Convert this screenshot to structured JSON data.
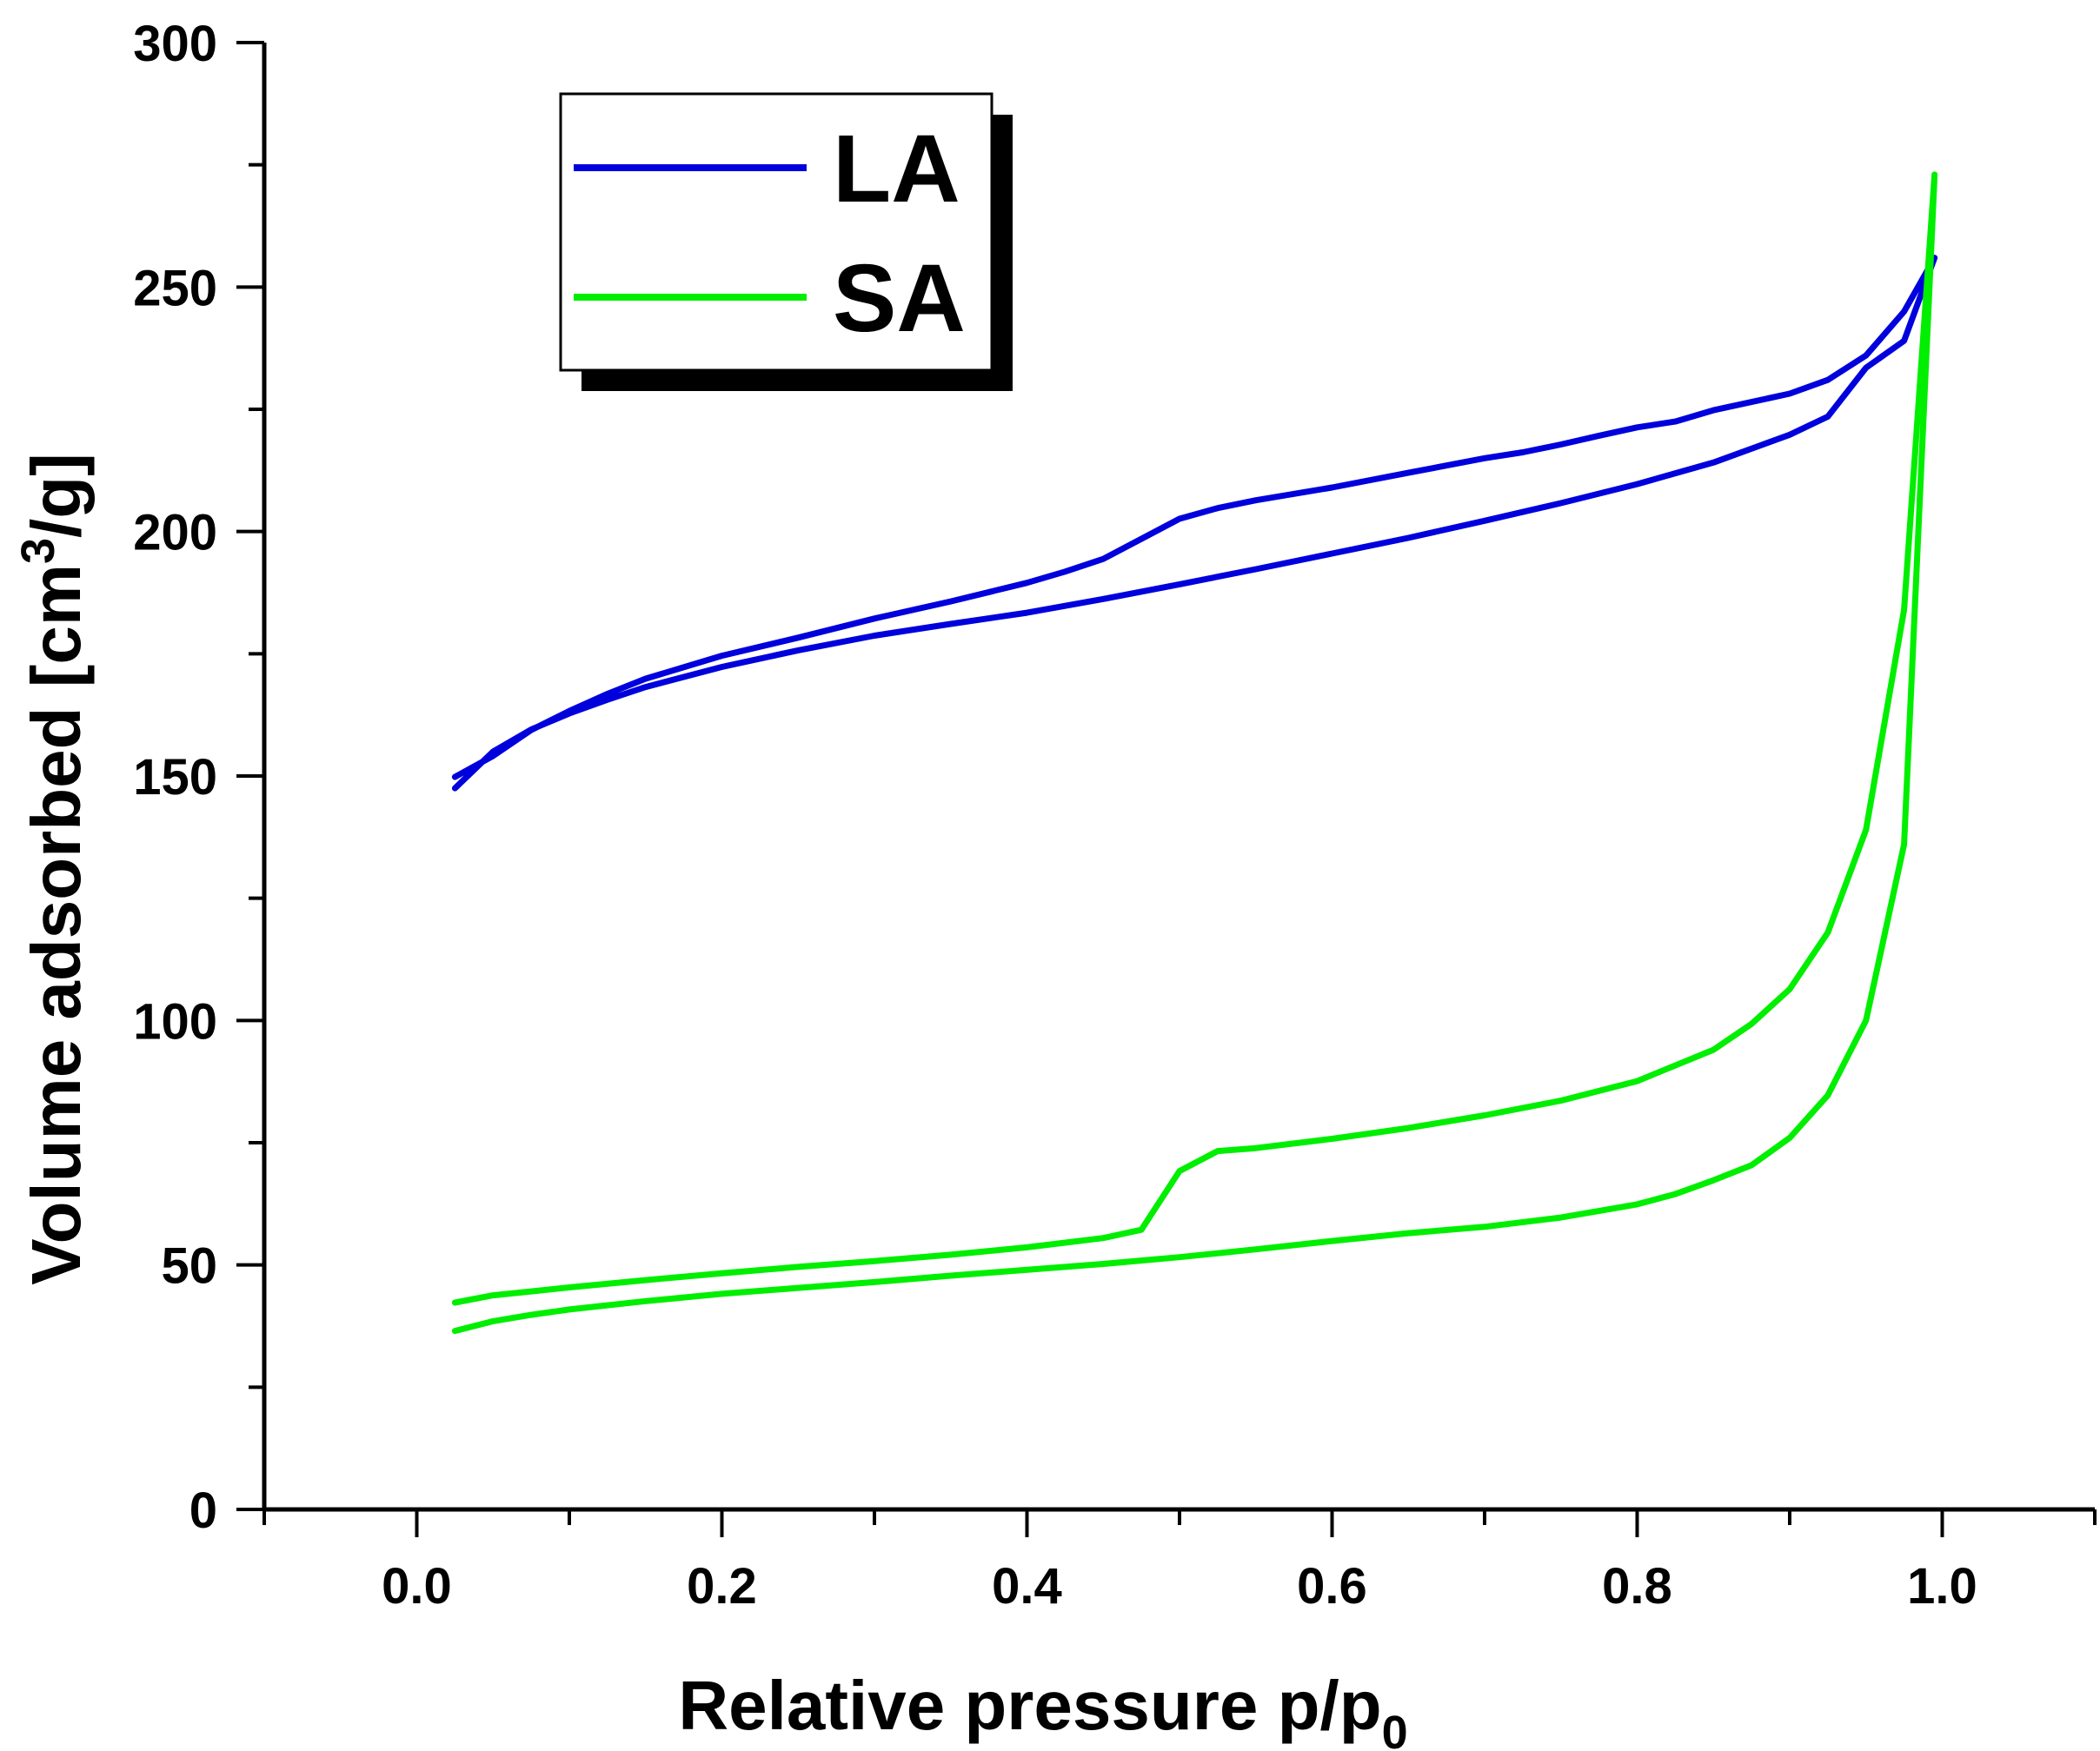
{
  "chart_data": {
    "type": "line",
    "xlabel": "Relative pressure p/p",
    "xlabel_sub": "0",
    "ylabel_pre": "Volume adsorbed [cm",
    "ylabel_sup": "3",
    "ylabel_post": "/g]",
    "xlim": [
      -0.1,
      1.1
    ],
    "ylim": [
      0,
      300
    ],
    "xticks": [
      0.0,
      0.2,
      0.4,
      0.6,
      0.8,
      1.0
    ],
    "xtick_labels": [
      "0.0",
      "0.2",
      "0.4",
      "0.6",
      "0.8",
      "1.0"
    ],
    "yticks": [
      0,
      50,
      100,
      150,
      200,
      250,
      300
    ],
    "ytick_labels": [
      "0",
      "50",
      "100",
      "150",
      "200",
      "250",
      "300"
    ],
    "grid": false,
    "legend_position": "top-left",
    "series": [
      {
        "name": "LA",
        "color": "#0000dd",
        "x": [
          0.025,
          0.05,
          0.075,
          0.1,
          0.125,
          0.15,
          0.2,
          0.25,
          0.3,
          0.35,
          0.4,
          0.45,
          0.5,
          0.55,
          0.6,
          0.65,
          0.7,
          0.75,
          0.8,
          0.85,
          0.9,
          0.925,
          0.95,
          0.975,
          0.995,
          0.975,
          0.95,
          0.925,
          0.9,
          0.85,
          0.825,
          0.8,
          0.775,
          0.75,
          0.725,
          0.7,
          0.675,
          0.65,
          0.6,
          0.55,
          0.525,
          0.5,
          0.475,
          0.45,
          0.425,
          0.4,
          0.35,
          0.3,
          0.25,
          0.2,
          0.15,
          0.125,
          0.1,
          0.075,
          0.05,
          0.025
        ],
        "y": [
          147.5,
          155,
          159.5,
          162.8,
          165.6,
          168.2,
          172.3,
          175.7,
          178.7,
          181.1,
          183.4,
          186.2,
          189.2,
          192.3,
          195.5,
          198.7,
          202.2,
          205.8,
          209.7,
          214.1,
          219.8,
          223.5,
          233.5,
          239,
          256,
          245,
          236,
          231,
          228.2,
          224.8,
          222.5,
          221.3,
          219.6,
          217.8,
          216.2,
          215,
          213.5,
          212,
          209,
          206.4,
          204.8,
          202.6,
          198.5,
          194.4,
          191.8,
          189.5,
          185.7,
          182.2,
          178.3,
          174.6,
          169.9,
          166.8,
          163.3,
          159.4,
          154.1,
          149.8
        ]
      },
      {
        "name": "SA",
        "color": "#00ee00",
        "x": [
          0.025,
          0.05,
          0.075,
          0.1,
          0.15,
          0.2,
          0.25,
          0.3,
          0.35,
          0.4,
          0.45,
          0.5,
          0.55,
          0.6,
          0.65,
          0.7,
          0.75,
          0.8,
          0.825,
          0.85,
          0.875,
          0.9,
          0.925,
          0.95,
          0.975,
          0.995,
          0.975,
          0.95,
          0.925,
          0.9,
          0.875,
          0.85,
          0.8,
          0.75,
          0.7,
          0.65,
          0.6,
          0.55,
          0.525,
          0.5,
          0.475,
          0.45,
          0.4,
          0.35,
          0.3,
          0.25,
          0.2,
          0.15,
          0.1,
          0.075,
          0.05,
          0.025
        ],
        "y": [
          36.5,
          38.5,
          39.8,
          40.9,
          42.6,
          44.1,
          45.3,
          46.5,
          47.8,
          49,
          50.2,
          51.6,
          53.2,
          54.9,
          56.5,
          57.8,
          59.7,
          62.4,
          64.5,
          67.3,
          70.4,
          76,
          84.7,
          100,
          136,
          273,
          184,
          139,
          118,
          106.4,
          99.3,
          94,
          87.6,
          83.6,
          80.6,
          78,
          75.8,
          73.9,
          73.3,
          69.2,
          57.2,
          55.5,
          53.6,
          52.1,
          50.8,
          49.6,
          48.3,
          46.9,
          45.4,
          44.6,
          43.8,
          42.3
        ]
      }
    ]
  }
}
